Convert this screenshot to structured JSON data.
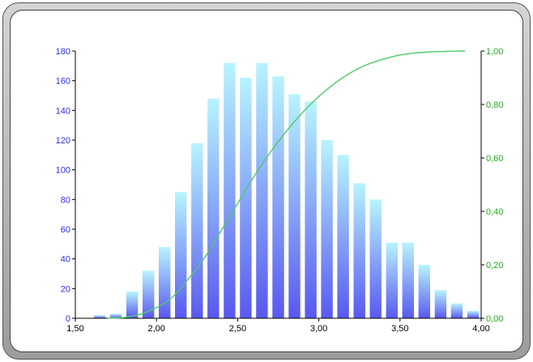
{
  "chart_data": {
    "type": "bar",
    "title": "",
    "xlabel": "",
    "ylabel": "",
    "xlim": [
      1.5,
      4.0
    ],
    "ylim": [
      0,
      180
    ],
    "y2lim": [
      0,
      1.0
    ],
    "grid": false,
    "x_ticks": [
      "1,50",
      "2,00",
      "2,50",
      "3,00",
      "3,50",
      "4,00"
    ],
    "y_ticks": [
      "0",
      "20",
      "40",
      "60",
      "80",
      "100",
      "120",
      "140",
      "160",
      "180"
    ],
    "y2_ticks": [
      "0,00",
      "0,20",
      "0,40",
      "0,60",
      "0,80",
      "1,00"
    ],
    "bin_width": 0.1,
    "bin_centers": [
      1.65,
      1.75,
      1.85,
      1.95,
      2.05,
      2.15,
      2.25,
      2.35,
      2.45,
      2.55,
      2.65,
      2.75,
      2.85,
      2.95,
      3.05,
      3.15,
      3.25,
      3.35,
      3.45,
      3.55,
      3.65,
      3.75,
      3.85,
      3.95
    ],
    "values": [
      2,
      3,
      18,
      32,
      48,
      85,
      118,
      148,
      172,
      162,
      172,
      163,
      151,
      146,
      120,
      110,
      91,
      80,
      51,
      51,
      36,
      19,
      10,
      5
    ],
    "cumulative": {
      "x": [
        1.7,
        1.8,
        1.9,
        2.0,
        2.1,
        2.2,
        2.3,
        2.4,
        2.5,
        2.6,
        2.7,
        2.8,
        2.9,
        3.0,
        3.1,
        3.2,
        3.3,
        3.4,
        3.5,
        3.6,
        3.7,
        3.8,
        3.9
      ],
      "y": [
        0.0,
        0.003,
        0.015,
        0.04,
        0.08,
        0.15,
        0.23,
        0.33,
        0.43,
        0.53,
        0.62,
        0.7,
        0.77,
        0.83,
        0.88,
        0.92,
        0.95,
        0.97,
        0.985,
        0.993,
        0.997,
        0.999,
        1.0
      ]
    },
    "colors": {
      "bar_top": "#b8f4ff",
      "bar_bottom": "#5858f0",
      "curve": "#4fc96a",
      "left_axis": "#2f2fe0",
      "right_axis": "#22aa22",
      "bottom_axis": "#000000"
    }
  }
}
